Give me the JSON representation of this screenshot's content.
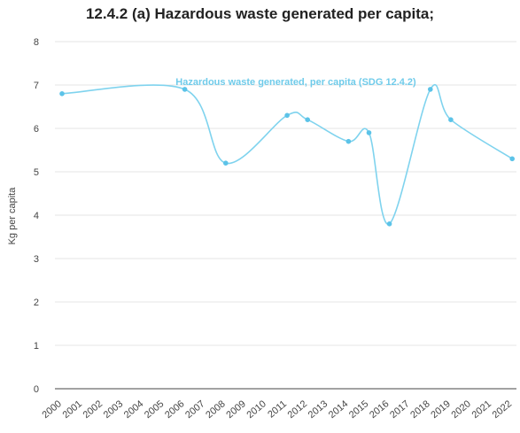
{
  "chart_data": {
    "type": "line",
    "title": "12.4.2 (a) Hazardous waste generated per capita;",
    "ylabel": "Kg per capita",
    "xlabel": "",
    "ylim": [
      0,
      8
    ],
    "yticks": [
      "0",
      "1",
      "2",
      "3",
      "4",
      "5",
      "6",
      "7",
      "8"
    ],
    "categories": [
      "2000",
      "2001",
      "2002",
      "2003",
      "2004",
      "2005",
      "2006",
      "2007",
      "2008",
      "2009",
      "2010",
      "2011",
      "2012",
      "2013",
      "2014",
      "2015",
      "2016",
      "2017",
      "2018",
      "2019",
      "2020",
      "2021",
      "2022"
    ],
    "series": [
      {
        "name": "Hazardous waste generated, per capita (SDG 12.4.2)",
        "points": [
          {
            "x": "2000",
            "y": 6.8
          },
          {
            "x": "2006",
            "y": 6.9
          },
          {
            "x": "2008",
            "y": 5.2
          },
          {
            "x": "2011",
            "y": 6.3
          },
          {
            "x": "2012",
            "y": 6.2
          },
          {
            "x": "2014",
            "y": 5.7
          },
          {
            "x": "2015",
            "y": 5.9
          },
          {
            "x": "2016",
            "y": 3.8
          },
          {
            "x": "2018",
            "y": 6.9
          },
          {
            "x": "2019",
            "y": 6.2
          },
          {
            "x": "2022",
            "y": 5.3
          }
        ]
      }
    ],
    "grid": true,
    "colors": {
      "line": "#7fd3ee",
      "point": "#5cc3e8",
      "label": "#6fcbea",
      "grid": "#e4e4e4",
      "axis": "#444444",
      "text": "#444444"
    }
  }
}
